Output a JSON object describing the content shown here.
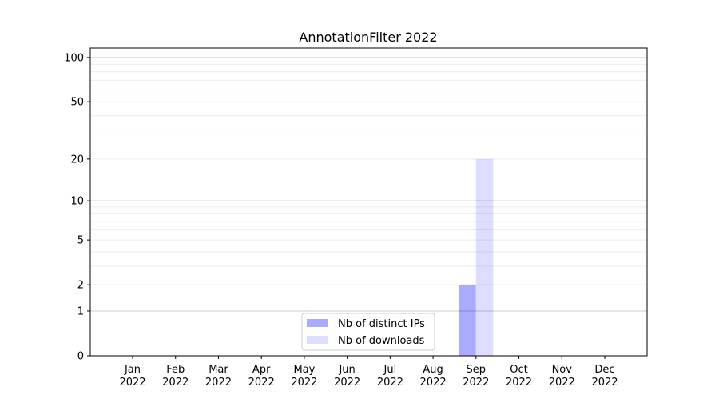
{
  "chart_data": {
    "type": "bar",
    "title": "AnnotationFilter 2022",
    "xlabel": "",
    "ylabel": "",
    "y_scale": "log(1+y)",
    "ylim": [
      0,
      116
    ],
    "grid": true,
    "legend_position": "lower-center",
    "categories": [
      "Jan\n2022",
      "Feb\n2022",
      "Mar\n2022",
      "Apr\n2022",
      "May\n2022",
      "Jun\n2022",
      "Jul\n2022",
      "Aug\n2022",
      "Sep\n2022",
      "Oct\n2022",
      "Nov\n2022",
      "Dec\n2022"
    ],
    "y_ticks": [
      0,
      1,
      2,
      5,
      10,
      20,
      50,
      100
    ],
    "series": [
      {
        "name": "Nb of distinct IPs",
        "color": "#aaaaff",
        "values": [
          0,
          0,
          0,
          0,
          0,
          0,
          0,
          0,
          2,
          0,
          0,
          0
        ]
      },
      {
        "name": "Nb of downloads",
        "color": "#ddddff",
        "values": [
          0,
          0,
          0,
          0,
          0,
          0,
          0,
          0,
          20,
          0,
          0,
          0
        ]
      }
    ]
  }
}
